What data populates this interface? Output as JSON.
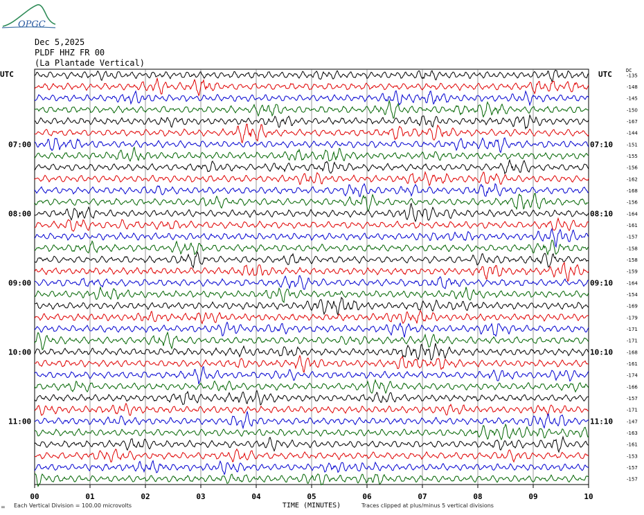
{
  "header": {
    "logo_text": "OPGC",
    "date": "Dec 5,2025",
    "station": "PLDF HHZ FR 00",
    "location": "(La Plantade Vertical)"
  },
  "utc_left": "UTC",
  "utc_right": "UTC",
  "dc_label": "DC",
  "footer": {
    "vertical_division": "Each Vertical Division =  100.00 microvolts",
    "clip_note": "Traces clipped at plus/minus 5 vertical divisions",
    "corner_mark": "="
  },
  "colors": {
    "black": "#000000",
    "red": "#e00000",
    "blue": "#0000d0",
    "green": "#006400",
    "grid": "#555555"
  },
  "chart_data": {
    "type": "line",
    "title": "",
    "xlabel": "TIME (MINUTES)",
    "xlim": [
      0,
      10
    ],
    "x_ticks": [
      "00",
      "01",
      "02",
      "03",
      "04",
      "05",
      "06",
      "07",
      "08",
      "09",
      "10"
    ],
    "trace_count": 36,
    "minutes_per_trace": 10,
    "color_cycle": [
      "black",
      "red",
      "blue",
      "green"
    ],
    "left_hour_labels": [
      {
        "trace": 6,
        "label": "07:00"
      },
      {
        "trace": 12,
        "label": "08:00"
      },
      {
        "trace": 18,
        "label": "09:00"
      },
      {
        "trace": 24,
        "label": "10:00"
      },
      {
        "trace": 30,
        "label": "11:00"
      }
    ],
    "right_hour_labels": [
      {
        "trace": 6,
        "label": "07:10"
      },
      {
        "trace": 12,
        "label": "08:10"
      },
      {
        "trace": 18,
        "label": "09:10"
      },
      {
        "trace": 24,
        "label": "10:10"
      },
      {
        "trace": 30,
        "label": "11:10"
      }
    ],
    "dc_offsets": [
      -135,
      -148,
      -145,
      -150,
      -167,
      -144,
      -151,
      -155,
      -156,
      -162,
      -168,
      -156,
      -164,
      -161,
      -157,
      -158,
      -158,
      -159,
      -164,
      -154,
      -169,
      -179,
      -171,
      -171,
      -168,
      -161,
      -174,
      -166,
      -157,
      -171,
      -147,
      -163,
      -161,
      -153,
      -157,
      -157
    ]
  }
}
